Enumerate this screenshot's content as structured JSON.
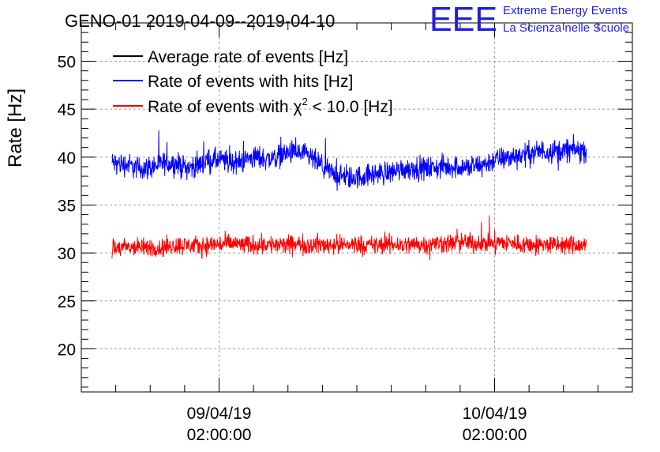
{
  "chart_data": {
    "type": "line",
    "title": "GENO-01 2019-04-09--2019-04-10",
    "ylabel": "Rate [Hz]",
    "xlabel": "",
    "ylim": [
      15.5,
      54
    ],
    "yticks": [
      20,
      25,
      30,
      35,
      40,
      45,
      50
    ],
    "xticks": [
      {
        "date": "09/04/19",
        "time": "02:00:00"
      },
      {
        "date": "10/04/19",
        "time": "02:00:00"
      }
    ],
    "x_range": [
      "2019-04-08T14:00:00",
      "2019-04-10T14:00:00"
    ],
    "grid": true,
    "legend_position": "top-left",
    "series": [
      {
        "name": "Average rate of events [Hz]",
        "color": "#000000",
        "start": "2019-04-08T16:40:00",
        "end": "2019-04-10T10:00:00",
        "values": []
      },
      {
        "name": "Rate of events with hits [Hz]",
        "color": "#0000ff",
        "start": "2019-04-08T16:40:00",
        "end": "2019-04-10T10:00:00",
        "values": [
          39.4,
          39.3,
          39.2,
          38.9,
          38.8,
          39.0,
          39.2,
          39.4,
          39.3,
          39.0,
          38.9,
          39.2,
          39.6,
          39.7,
          39.6,
          39.5,
          39.4,
          39.8,
          40.0,
          39.9,
          39.8,
          40.1,
          40.4,
          40.5,
          40.3,
          40.0,
          39.4,
          38.7,
          38.3,
          38.0,
          37.8,
          37.9,
          38.0,
          38.2,
          38.3,
          38.4,
          38.6,
          38.8,
          38.9,
          38.8,
          38.8,
          38.9,
          39.0,
          39.0,
          39.0,
          38.9,
          39.0,
          39.2,
          39.6,
          39.8,
          39.9,
          40.1,
          40.3,
          40.4,
          40.6,
          40.6,
          40.7,
          40.6,
          40.8,
          40.7,
          40.6
        ]
      },
      {
        "name": "Rate of events with χ² < 10.0 [Hz]",
        "color": "#ff0000",
        "start": "2019-04-08T16:40:00",
        "end": "2019-04-10T10:00:00",
        "values": [
          30.4,
          30.5,
          30.6,
          30.6,
          30.5,
          30.6,
          30.5,
          30.7,
          30.8,
          30.8,
          30.8,
          30.7,
          30.8,
          30.9,
          30.9,
          31.0,
          30.9,
          30.8,
          30.9,
          30.9,
          30.9,
          30.8,
          30.8,
          30.9,
          30.9,
          30.8,
          30.9,
          30.8,
          30.9,
          30.8,
          30.9,
          30.9,
          30.8,
          30.8,
          30.8,
          30.9,
          30.9,
          30.8,
          30.9,
          30.9,
          30.9,
          31.0,
          31.0,
          31.0,
          31.1,
          31.1,
          31.0,
          31.0,
          31.1,
          31.1,
          31.0,
          31.0,
          30.9,
          30.9,
          30.8,
          30.9,
          30.8,
          30.8,
          30.8,
          30.8,
          30.7
        ]
      }
    ]
  },
  "legend": {
    "avg": "Average rate of events [Hz]",
    "hits": "Rate of events with hits [Hz]",
    "chi_prefix": "Rate of events with ",
    "chi_symbol": "χ",
    "chi_power": "2",
    "chi_suffix": " < 10.0 [Hz]"
  },
  "logo": {
    "mark": "EEE",
    "line1": "Extreme Energy Events",
    "line2": "La Scienza nelle Scuole",
    "color": "#1f1fe0"
  }
}
